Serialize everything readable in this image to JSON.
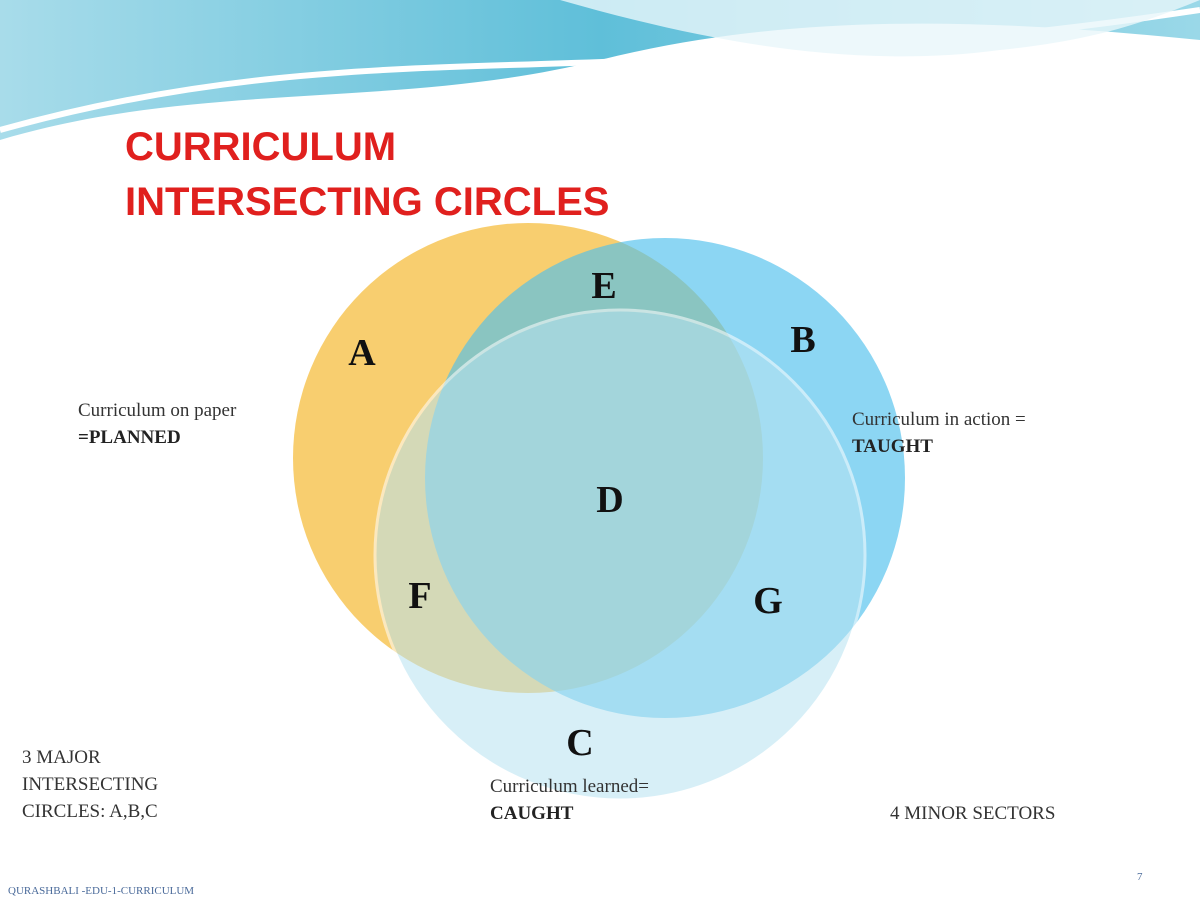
{
  "title": {
    "line1": "CURRICULUM",
    "line2": "INTERSECTING CIRCLES"
  },
  "regions": [
    "A",
    "B",
    "C",
    "D",
    "E",
    "F",
    "G"
  ],
  "labels": {
    "planned": {
      "text": "Curriculum on paper",
      "emphasis": "=PLANNED"
    },
    "taught": {
      "text": "Curriculum in action =",
      "emphasis": "TAUGHT"
    },
    "caught": {
      "text": "Curriculum learned=",
      "emphasis": "CAUGHT"
    }
  },
  "notes": {
    "major": [
      "3 MAJOR",
      "INTERSECTING",
      "CIRCLES: A,B,C"
    ],
    "minor": "4 MINOR SECTORS"
  },
  "footer": {
    "source": "QURASHBALI -EDU-1-CURRICULUM",
    "page": "7"
  }
}
